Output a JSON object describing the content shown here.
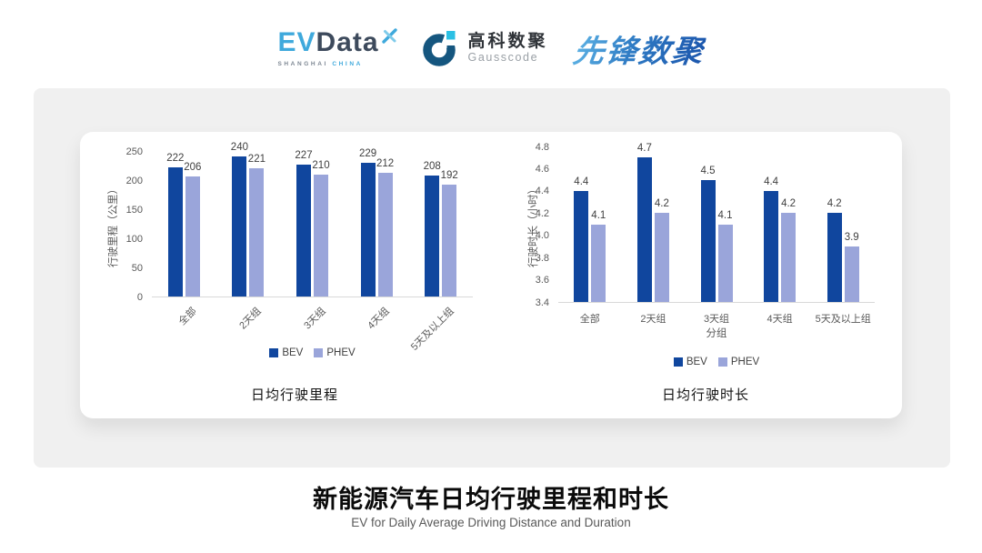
{
  "header": {
    "logos": {
      "evdata": {
        "ev": "EV",
        "data": "Data",
        "sub_left": "SHANGHAI",
        "sub_right": "CHINA"
      },
      "gausscode": {
        "cn": "高科数聚",
        "en": "Gausscode"
      },
      "pioneer": {
        "text": "先锋数聚"
      }
    }
  },
  "colors": {
    "bev": "#10469E",
    "phev": "#9AA5DA",
    "evdata_blue": "#3FA9DC",
    "evdata_dark": "#3D4A5C",
    "gausscode_dark": "#15567F",
    "gausscode_cyan": "#2BC0E4",
    "pioneer_gradient": [
      "#5FB5E6",
      "#1B55AC"
    ],
    "card_bg": "#F0F0F0",
    "axis_line": "#D9D9D9",
    "tick_text": "#595959"
  },
  "icons": {
    "evdata_star": "x-star-icon",
    "gausscode_mark": "g-ring-icon"
  },
  "chart_data": [
    {
      "type": "bar",
      "title": "日均行驶里程",
      "ylabel": "行驶里程（公里）",
      "xlabel": "",
      "categories": [
        "全部",
        "2天组",
        "3天组",
        "4天组",
        "5天及以上组"
      ],
      "series": [
        {
          "name": "BEV",
          "color": "#10469E",
          "values": [
            222,
            240,
            227,
            229,
            208
          ]
        },
        {
          "name": "PHEV",
          "color": "#9AA5DA",
          "values": [
            206,
            221,
            210,
            212,
            192
          ]
        }
      ],
      "ymin": 0,
      "ymax": 250,
      "ytick_step": 50,
      "ytick_decimals": 0,
      "label_decimals": 0,
      "rotated_xticks": true,
      "legend": [
        "BEV",
        "PHEV"
      ],
      "legend_position": "bottom",
      "grid": false
    },
    {
      "type": "bar",
      "title": "日均行驶时长",
      "ylabel": "行驶时长（小时）",
      "xlabel": "分组",
      "categories": [
        "全部",
        "2天组",
        "3天组",
        "4天组",
        "5天及以上组"
      ],
      "series": [
        {
          "name": "BEV",
          "color": "#10469E",
          "values": [
            4.4,
            4.7,
            4.5,
            4.4,
            4.2
          ]
        },
        {
          "name": "PHEV",
          "color": "#9AA5DA",
          "values": [
            4.1,
            4.2,
            4.1,
            4.2,
            3.9
          ]
        }
      ],
      "ymin": 3.4,
      "ymax": 4.8,
      "ytick_step": 0.2,
      "ytick_decimals": 1,
      "label_decimals": 1,
      "rotated_xticks": false,
      "legend": [
        "BEV",
        "PHEV"
      ],
      "legend_position": "bottom",
      "grid": false
    }
  ],
  "footer": {
    "title": "新能源汽车日均行驶里程和时长",
    "subtitle": "EV for Daily Average Driving Distance and Duration"
  }
}
